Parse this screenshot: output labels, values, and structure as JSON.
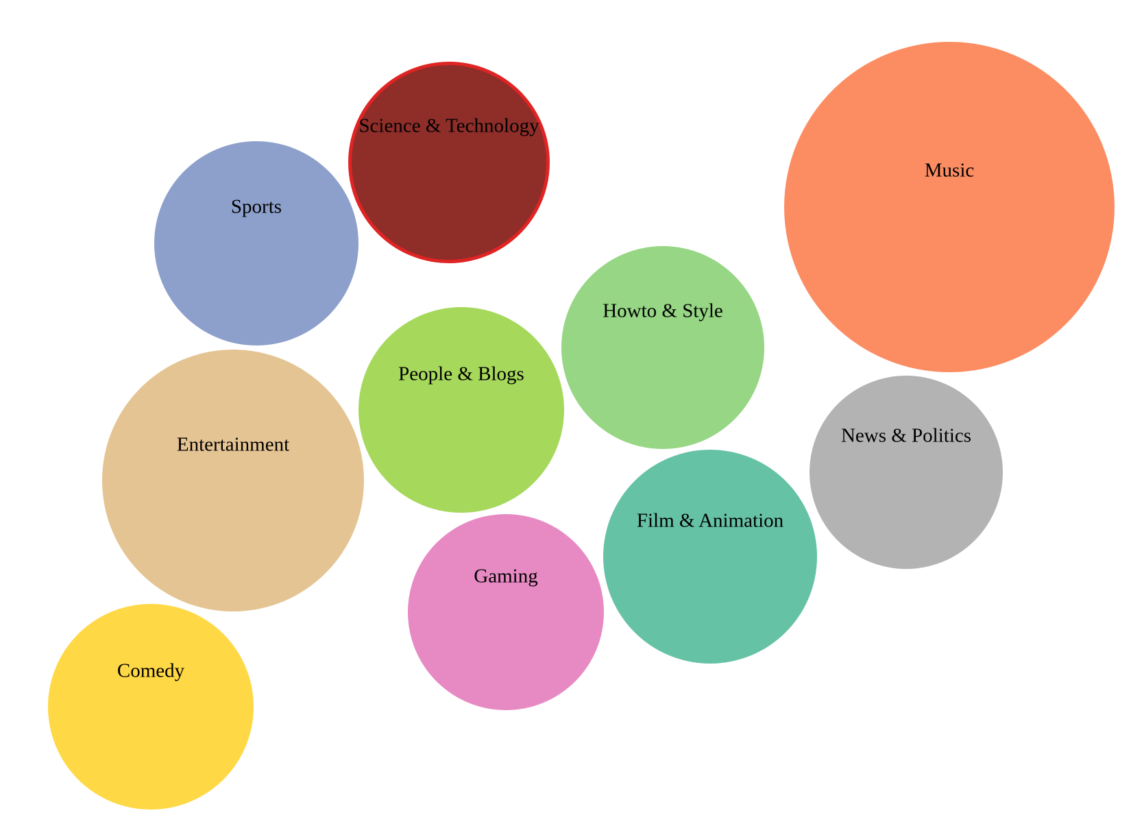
{
  "chart_data": {
    "type": "bubble",
    "title": "",
    "bubbles": [
      {
        "label": "Music",
        "color": "#fc8d62",
        "highlighted": false
      },
      {
        "label": "Science & Technology",
        "color": "#8f2d29",
        "highlighted": true,
        "stroke": "#e02424"
      },
      {
        "label": "Sports",
        "color": "#8da0cb",
        "highlighted": false
      },
      {
        "label": "Howto & Style",
        "color": "#96d684",
        "highlighted": false
      },
      {
        "label": "People & Blogs",
        "color": "#a6d85c",
        "highlighted": false
      },
      {
        "label": "Entertainment",
        "color": "#e5c494",
        "highlighted": false
      },
      {
        "label": "News & Politics",
        "color": "#b3b3b3",
        "highlighted": false
      },
      {
        "label": "Film & Animation",
        "color": "#66c2a5",
        "highlighted": false
      },
      {
        "label": "Gaming",
        "color": "#e78ac3",
        "highlighted": false
      },
      {
        "label": "Comedy",
        "color": "#ffd845",
        "highlighted": false
      }
    ]
  }
}
